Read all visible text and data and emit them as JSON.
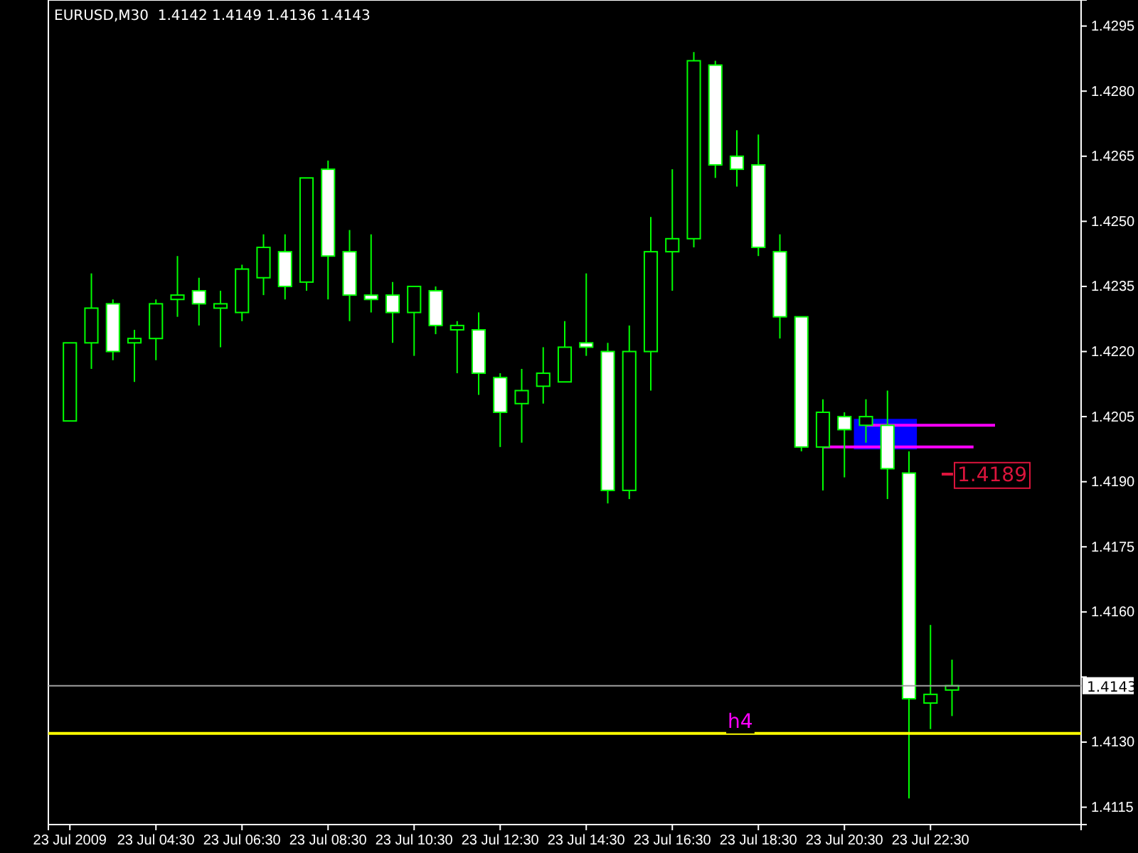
{
  "chart_data": {
    "type": "candlestick",
    "title": "EURUSD,M30  1.4142 1.4149 1.4136 1.4143",
    "xlim": [
      "2009-07-23T02:00",
      "2009-07-24T02:00"
    ],
    "xticks": [
      {
        "value": "2009-07-23T02:30",
        "label": "23 Jul 2009"
      },
      {
        "value": "2009-07-23T04:30",
        "label": "23 Jul 04:30"
      },
      {
        "value": "2009-07-23T06:30",
        "label": "23 Jul 06:30"
      },
      {
        "value": "2009-07-23T08:30",
        "label": "23 Jul 08:30"
      },
      {
        "value": "2009-07-23T10:30",
        "label": "23 Jul 10:30"
      },
      {
        "value": "2009-07-23T12:30",
        "label": "23 Jul 12:30"
      },
      {
        "value": "2009-07-23T14:30",
        "label": "23 Jul 14:30"
      },
      {
        "value": "2009-07-23T16:30",
        "label": "23 Jul 16:30"
      },
      {
        "value": "2009-07-23T18:30",
        "label": "23 Jul 18:30"
      },
      {
        "value": "2009-07-23T20:30",
        "label": "23 Jul 20:30"
      },
      {
        "value": "2009-07-23T22:30",
        "label": "23 Jul 22:30"
      }
    ],
    "ylim": [
      1.4111,
      1.4301
    ],
    "yticks": [
      {
        "value": 1.4115,
        "label": "1.4115"
      },
      {
        "value": 1.413,
        "label": "1.4130"
      },
      {
        "value": 1.4145,
        "label": null
      },
      {
        "value": 1.416,
        "label": "1.4160"
      },
      {
        "value": 1.4175,
        "label": "1.4175"
      },
      {
        "value": 1.419,
        "label": "1.4190"
      },
      {
        "value": 1.4205,
        "label": "1.4205"
      },
      {
        "value": 1.422,
        "label": "1.4220"
      },
      {
        "value": 1.4235,
        "label": "1.4235"
      },
      {
        "value": 1.425,
        "label": "1.4250"
      },
      {
        "value": 1.4265,
        "label": "1.4265"
      },
      {
        "value": 1.428,
        "label": "1.4280"
      },
      {
        "value": 1.4295,
        "label": "1.4295"
      }
    ],
    "grid": false,
    "ref_lines": [
      {
        "axis": "y",
        "value": 1.4143,
        "label": "1.4143",
        "color": "#a0a0a0"
      },
      {
        "axis": "y",
        "value": 1.4132,
        "label": "h4",
        "color": "#ffff00"
      }
    ],
    "annotations": [
      "1.4189"
    ],
    "series": [
      {
        "type": "line",
        "color": "#ff00ff",
        "x": [
          "2009-07-23T21:00",
          "2009-07-24T00:00"
        ],
        "values": [
          1.4203,
          1.4203
        ]
      },
      {
        "type": "line",
        "color": "#ff00ff",
        "x": [
          "2009-07-23T20:00",
          "2009-07-23T23:30"
        ],
        "values": [
          1.4198,
          1.4198
        ]
      },
      {
        "type": "candlestick",
        "color": "#00ff00",
        "x": [
          "2009-07-23T02:30",
          "2009-07-23T03:00",
          "2009-07-23T03:30",
          "2009-07-23T04:00",
          "2009-07-23T04:30",
          "2009-07-23T05:00",
          "2009-07-23T05:30",
          "2009-07-23T06:00",
          "2009-07-23T06:30",
          "2009-07-23T07:00",
          "2009-07-23T07:30",
          "2009-07-23T08:00",
          "2009-07-23T08:30",
          "2009-07-23T09:00",
          "2009-07-23T09:30",
          "2009-07-23T10:00",
          "2009-07-23T10:30",
          "2009-07-23T11:00",
          "2009-07-23T11:30",
          "2009-07-23T12:00",
          "2009-07-23T12:30",
          "2009-07-23T13:00",
          "2009-07-23T13:30",
          "2009-07-23T14:00",
          "2009-07-23T14:30",
          "2009-07-23T15:00",
          "2009-07-23T15:30",
          "2009-07-23T16:00",
          "2009-07-23T16:30",
          "2009-07-23T17:00",
          "2009-07-23T17:30",
          "2009-07-23T18:00",
          "2009-07-23T18:30",
          "2009-07-23T19:00",
          "2009-07-23T19:30",
          "2009-07-23T20:00",
          "2009-07-23T20:30",
          "2009-07-23T21:00",
          "2009-07-23T21:30",
          "2009-07-23T22:00",
          "2009-07-23T22:30",
          "2009-07-23T23:00"
        ],
        "ohlc": [
          [
            1.4204,
            1.4222,
            1.4204,
            1.4222
          ],
          [
            1.4222,
            1.4238,
            1.4216,
            1.423
          ],
          [
            1.4231,
            1.4232,
            1.4218,
            1.422
          ],
          [
            1.4222,
            1.4225,
            1.4213,
            1.4223
          ],
          [
            1.4223,
            1.4232,
            1.4218,
            1.4231
          ],
          [
            1.4232,
            1.4242,
            1.4228,
            1.4233
          ],
          [
            1.4234,
            1.4237,
            1.4226,
            1.4231
          ],
          [
            1.423,
            1.4234,
            1.4221,
            1.4231
          ],
          [
            1.4229,
            1.424,
            1.4227,
            1.4239
          ],
          [
            1.4237,
            1.4247,
            1.4233,
            1.4244
          ],
          [
            1.4243,
            1.4247,
            1.4232,
            1.4235
          ],
          [
            1.4236,
            1.426,
            1.4234,
            1.426
          ],
          [
            1.4262,
            1.4264,
            1.4232,
            1.4242
          ],
          [
            1.4243,
            1.4248,
            1.4227,
            1.4233
          ],
          [
            1.4233,
            1.4247,
            1.4229,
            1.4232
          ],
          [
            1.4233,
            1.4236,
            1.4222,
            1.4229
          ],
          [
            1.4229,
            1.4235,
            1.4219,
            1.4235
          ],
          [
            1.4234,
            1.4235,
            1.4224,
            1.4226
          ],
          [
            1.4225,
            1.4227,
            1.4215,
            1.4226
          ],
          [
            1.4225,
            1.4229,
            1.421,
            1.4215
          ],
          [
            1.4214,
            1.4215,
            1.4198,
            1.4206
          ],
          [
            1.4208,
            1.4216,
            1.4199,
            1.4211
          ],
          [
            1.4212,
            1.4221,
            1.4208,
            1.4215
          ],
          [
            1.4213,
            1.4227,
            1.4213,
            1.4221
          ],
          [
            1.4222,
            1.4238,
            1.4219,
            1.4221
          ],
          [
            1.422,
            1.4222,
            1.4185,
            1.4188
          ],
          [
            1.4188,
            1.4226,
            1.4186,
            1.422
          ],
          [
            1.422,
            1.4251,
            1.4211,
            1.4243
          ],
          [
            1.4243,
            1.4262,
            1.4234,
            1.4246
          ],
          [
            1.4246,
            1.4289,
            1.4244,
            1.4287
          ],
          [
            1.4286,
            1.4287,
            1.426,
            1.4263
          ],
          [
            1.4265,
            1.4271,
            1.4258,
            1.4262
          ],
          [
            1.4263,
            1.427,
            1.4242,
            1.4244
          ],
          [
            1.4243,
            1.4247,
            1.4223,
            1.4228
          ],
          [
            1.4228,
            1.4228,
            1.4197,
            1.4198
          ],
          [
            1.4198,
            1.4209,
            1.4188,
            1.4206
          ],
          [
            1.4205,
            1.4206,
            1.4191,
            1.4202
          ],
          [
            1.4203,
            1.4209,
            1.4199,
            1.4205
          ],
          [
            1.4203,
            1.4211,
            1.4186,
            1.4193
          ],
          [
            1.4192,
            1.4197,
            1.4117,
            1.414
          ],
          [
            1.4139,
            1.4157,
            1.4133,
            1.4141
          ],
          [
            1.4142,
            1.4149,
            1.4136,
            1.4143
          ]
        ]
      }
    ]
  }
}
